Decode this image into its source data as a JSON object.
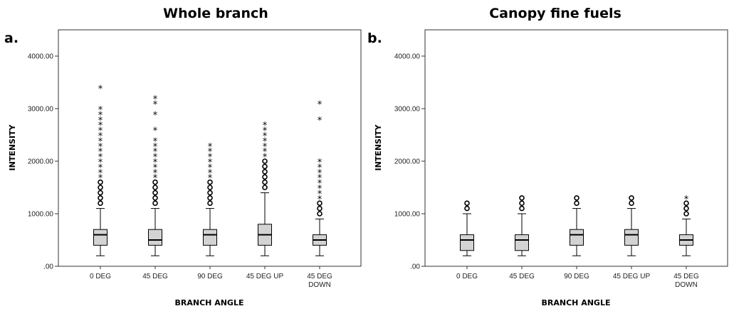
{
  "chart_data": [
    {
      "type": "box",
      "panel": "a.",
      "title": "Whole branch",
      "xlabel": "BRANCH ANGLE",
      "ylabel": "INTENSITY",
      "ylim": [
        0,
        4500
      ],
      "yticks": [
        0,
        1000,
        2000,
        3000,
        4000
      ],
      "ytick_labels": [
        ".00",
        "1000.00",
        "2000.00",
        "3000.00",
        "4000.00"
      ],
      "categories": [
        {
          "label": [
            "0 DEG"
          ],
          "whisker_low": 200,
          "q1": 400,
          "median": 600,
          "q3": 700,
          "whisker_high": 1100,
          "outliers": [
            1200,
            1300,
            1400,
            1500,
            1600
          ],
          "extremes": [
            1700,
            1800,
            1900,
            2000,
            2100,
            2200,
            2300,
            2400,
            2500,
            2600,
            2700,
            2800,
            2900,
            3000,
            3400
          ]
        },
        {
          "label": [
            "45 DEG"
          ],
          "whisker_low": 200,
          "q1": 400,
          "median": 500,
          "q3": 700,
          "whisker_high": 1100,
          "outliers": [
            1200,
            1300,
            1400,
            1500,
            1600
          ],
          "extremes": [
            1700,
            1800,
            1900,
            2000,
            2100,
            2200,
            2300,
            2400,
            2600,
            2900,
            3100,
            3200
          ]
        },
        {
          "label": [
            "90 DEG"
          ],
          "whisker_low": 200,
          "q1": 400,
          "median": 600,
          "q3": 700,
          "whisker_high": 1100,
          "outliers": [
            1200,
            1300,
            1400,
            1500,
            1600
          ],
          "extremes": [
            1700,
            1800,
            1900,
            2000,
            2100,
            2200,
            2300
          ]
        },
        {
          "label": [
            "45 DEG UP"
          ],
          "whisker_low": 200,
          "q1": 400,
          "median": 600,
          "q3": 800,
          "whisker_high": 1400,
          "outliers": [
            1500,
            1600,
            1700,
            1800,
            1900,
            2000
          ],
          "extremes": [
            2100,
            2200,
            2300,
            2400,
            2500,
            2600,
            2700
          ]
        },
        {
          "label": [
            "45 DEG",
            "DOWN"
          ],
          "whisker_low": 200,
          "q1": 400,
          "median": 500,
          "q3": 600,
          "whisker_high": 900,
          "outliers": [
            1000,
            1100,
            1200
          ],
          "extremes": [
            1300,
            1400,
            1500,
            1600,
            1700,
            1800,
            1900,
            2000,
            2800,
            3100
          ]
        }
      ]
    },
    {
      "type": "box",
      "panel": "b.",
      "title": "Canopy fine fuels",
      "xlabel": "BRANCH ANGLE",
      "ylabel": "INTENSITY",
      "ylim": [
        0,
        4500
      ],
      "yticks": [
        0,
        1000,
        2000,
        3000,
        4000
      ],
      "ytick_labels": [
        ".00",
        "1000.00",
        "2000.00",
        "3000.00",
        "4000.00"
      ],
      "categories": [
        {
          "label": [
            "0 DEG"
          ],
          "whisker_low": 200,
          "q1": 300,
          "median": 500,
          "q3": 600,
          "whisker_high": 1000,
          "outliers": [
            1100,
            1200
          ],
          "extremes": []
        },
        {
          "label": [
            "45 DEG"
          ],
          "whisker_low": 200,
          "q1": 300,
          "median": 500,
          "q3": 600,
          "whisker_high": 1000,
          "outliers": [
            1100,
            1200,
            1300
          ],
          "extremes": []
        },
        {
          "label": [
            "90 DEG"
          ],
          "whisker_low": 200,
          "q1": 400,
          "median": 600,
          "q3": 700,
          "whisker_high": 1100,
          "outliers": [
            1200,
            1300
          ],
          "extremes": []
        },
        {
          "label": [
            "45 DEG UP"
          ],
          "whisker_low": 200,
          "q1": 400,
          "median": 600,
          "q3": 700,
          "whisker_high": 1100,
          "outliers": [
            1200,
            1300
          ],
          "extremes": []
        },
        {
          "label": [
            "45 DEG",
            "DOWN"
          ],
          "whisker_low": 200,
          "q1": 400,
          "median": 500,
          "q3": 600,
          "whisker_high": 900,
          "outliers": [
            1000,
            1100,
            1200
          ],
          "extremes": [
            1300
          ]
        }
      ]
    }
  ]
}
